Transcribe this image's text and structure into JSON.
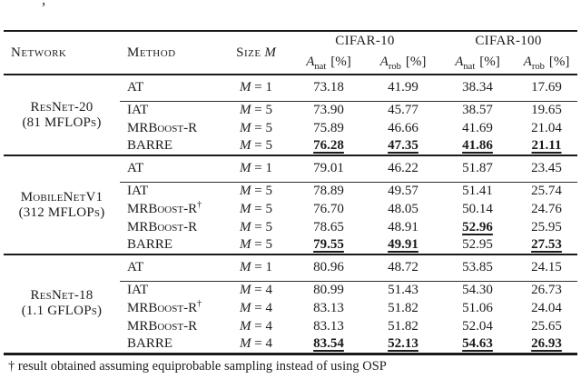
{
  "caption_fragment": ",",
  "colors": {
    "text": "#1c1c1c",
    "rule": "#1a1a1a"
  },
  "table": {
    "header": {
      "network": "Network",
      "method": "Method",
      "size_label": "Size",
      "size_symbol": "M",
      "groups": [
        "CIFAR-10",
        "CIFAR-100"
      ],
      "subheaders": [
        {
          "symbol": "A",
          "subscript": "nat",
          "unit": "[%]"
        },
        {
          "symbol": "A",
          "subscript": "rob",
          "unit": "[%]"
        },
        {
          "symbol": "A",
          "subscript": "nat",
          "unit": "[%]"
        },
        {
          "symbol": "A",
          "subscript": "rob",
          "unit": "[%]"
        }
      ]
    },
    "blocks": [
      {
        "network_name": "ResNet-20",
        "network_detail": "(81 MFLOPs)",
        "rows": [
          {
            "method": "AT",
            "dagger": "",
            "size_symbol": "M",
            "size_value": "= 1",
            "values": [
              {
                "v": "73.18",
                "best": false
              },
              {
                "v": "41.99",
                "best": false
              },
              {
                "v": "38.34",
                "best": false
              },
              {
                "v": "17.69",
                "best": false
              }
            ]
          },
          {
            "method": "IAT",
            "dagger": "",
            "size_symbol": "M",
            "size_value": "= 5",
            "values": [
              {
                "v": "73.90",
                "best": false
              },
              {
                "v": "45.77",
                "best": false
              },
              {
                "v": "38.57",
                "best": false
              },
              {
                "v": "19.65",
                "best": false
              }
            ]
          },
          {
            "method": "MRBoost-R",
            "dagger": "",
            "size_symbol": "M",
            "size_value": "= 5",
            "values": [
              {
                "v": "75.89",
                "best": false
              },
              {
                "v": "46.66",
                "best": false
              },
              {
                "v": "41.69",
                "best": false
              },
              {
                "v": "21.04",
                "best": false
              }
            ]
          },
          {
            "method": "BARRE",
            "dagger": "",
            "size_symbol": "M",
            "size_value": "= 5",
            "values": [
              {
                "v": "76.28",
                "best": true
              },
              {
                "v": "47.35",
                "best": true
              },
              {
                "v": "41.86",
                "best": true
              },
              {
                "v": "21.11",
                "best": true
              }
            ]
          }
        ]
      },
      {
        "network_name": "MobileNetV1",
        "network_detail": "(312 MFLOPs)",
        "rows": [
          {
            "method": "AT",
            "dagger": "",
            "size_symbol": "M",
            "size_value": "= 1",
            "values": [
              {
                "v": "79.01",
                "best": false
              },
              {
                "v": "46.22",
                "best": false
              },
              {
                "v": "51.87",
                "best": false
              },
              {
                "v": "23.45",
                "best": false
              }
            ]
          },
          {
            "method": "IAT",
            "dagger": "",
            "size_symbol": "M",
            "size_value": "= 5",
            "values": [
              {
                "v": "78.89",
                "best": false
              },
              {
                "v": "49.57",
                "best": false
              },
              {
                "v": "51.41",
                "best": false
              },
              {
                "v": "25.74",
                "best": false
              }
            ]
          },
          {
            "method": "MRBoost-R",
            "dagger": "†",
            "size_symbol": "M",
            "size_value": "= 5",
            "values": [
              {
                "v": "76.70",
                "best": false
              },
              {
                "v": "48.05",
                "best": false
              },
              {
                "v": "50.14",
                "best": false
              },
              {
                "v": "24.76",
                "best": false
              }
            ]
          },
          {
            "method": "MRBoost-R",
            "dagger": "",
            "size_symbol": "M",
            "size_value": "= 5",
            "values": [
              {
                "v": "78.65",
                "best": false
              },
              {
                "v": "48.91",
                "best": false
              },
              {
                "v": "52.96",
                "best": true
              },
              {
                "v": "25.95",
                "best": false
              }
            ]
          },
          {
            "method": "BARRE",
            "dagger": "",
            "size_symbol": "M",
            "size_value": "= 5",
            "values": [
              {
                "v": "79.55",
                "best": true
              },
              {
                "v": "49.91",
                "best": true
              },
              {
                "v": "52.95",
                "best": false
              },
              {
                "v": "27.53",
                "best": true
              }
            ]
          }
        ]
      },
      {
        "network_name": "ResNet-18",
        "network_detail": "(1.1 GFLOPs)",
        "rows": [
          {
            "method": "AT",
            "dagger": "",
            "size_symbol": "M",
            "size_value": "= 1",
            "values": [
              {
                "v": "80.96",
                "best": false
              },
              {
                "v": "48.72",
                "best": false
              },
              {
                "v": "53.85",
                "best": false
              },
              {
                "v": "24.15",
                "best": false
              }
            ]
          },
          {
            "method": "IAT",
            "dagger": "",
            "size_symbol": "M",
            "size_value": "= 4",
            "values": [
              {
                "v": "80.99",
                "best": false
              },
              {
                "v": "51.43",
                "best": false
              },
              {
                "v": "54.30",
                "best": false
              },
              {
                "v": "26.73",
                "best": false
              }
            ]
          },
          {
            "method": "MRBoost-R",
            "dagger": "†",
            "size_symbol": "M",
            "size_value": "= 4",
            "values": [
              {
                "v": "83.13",
                "best": false
              },
              {
                "v": "51.82",
                "best": false
              },
              {
                "v": "51.06",
                "best": false
              },
              {
                "v": "24.04",
                "best": false
              }
            ]
          },
          {
            "method": "MRBoost-R",
            "dagger": "",
            "size_symbol": "M",
            "size_value": "= 4",
            "values": [
              {
                "v": "83.13",
                "best": false
              },
              {
                "v": "51.82",
                "best": false
              },
              {
                "v": "52.04",
                "best": false
              },
              {
                "v": "25.65",
                "best": false
              }
            ]
          },
          {
            "method": "BARRE",
            "dagger": "",
            "size_symbol": "M",
            "size_value": "= 4",
            "values": [
              {
                "v": "83.54",
                "best": true
              },
              {
                "v": "52.13",
                "best": true
              },
              {
                "v": "54.63",
                "best": true
              },
              {
                "v": "26.93",
                "best": true
              }
            ]
          }
        ]
      }
    ],
    "footnote": {
      "symbol": "†",
      "text": "result obtained assuming equiprobable sampling instead of using OSP"
    }
  }
}
